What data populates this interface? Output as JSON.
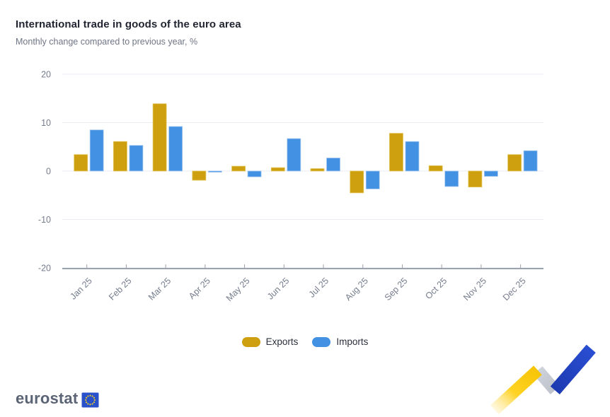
{
  "header": {
    "title": "International trade in goods of the euro area",
    "subtitle": "Monthly change compared to previous year, %"
  },
  "chart_data": {
    "type": "bar",
    "title": "International trade in goods of the euro area",
    "subtitle": "Monthly change compared to previous year, %",
    "categories": [
      "Jan 25",
      "Feb 25",
      "Mar 25",
      "Apr 25",
      "May 25",
      "Jun 25",
      "Jul 25",
      "Aug 25",
      "Sep 25",
      "Oct 25",
      "Nov 25",
      "Dec 25"
    ],
    "series": [
      {
        "name": "Exports",
        "color": "#CEA00F",
        "edge": "#E2C457",
        "values": [
          3.4,
          6.1,
          13.9,
          -1.9,
          1.0,
          0.7,
          0.5,
          -4.5,
          7.8,
          1.1,
          -3.3,
          3.4
        ]
      },
      {
        "name": "Imports",
        "color": "#4291E2",
        "edge": "#A6C8F0",
        "values": [
          8.5,
          5.3,
          9.2,
          -0.2,
          -1.2,
          6.7,
          2.7,
          -3.7,
          6.1,
          -3.2,
          -1.1,
          4.2
        ]
      }
    ],
    "xlabel": "",
    "ylabel": "",
    "ylim": [
      -20,
      20
    ],
    "yticks": [
      20,
      10,
      0,
      -10,
      -20
    ],
    "grid": true,
    "legend_position": "bottom"
  },
  "legend": {
    "items": [
      {
        "label": "Exports",
        "color": "#CEA00F"
      },
      {
        "label": "Imports",
        "color": "#4291E2"
      }
    ]
  },
  "footer": {
    "logo_text": "eurostat"
  },
  "colors": {
    "eu_flag_blue": "#2951C9",
    "eu_star_yellow": "#FFD617",
    "ribbon_yellow": "#FFD021",
    "ribbon_gray": "#C9CDD5",
    "ribbon_blue": "#2446C6",
    "gridline": "#E9EDF3",
    "axis_line": "#9BA3AE"
  }
}
